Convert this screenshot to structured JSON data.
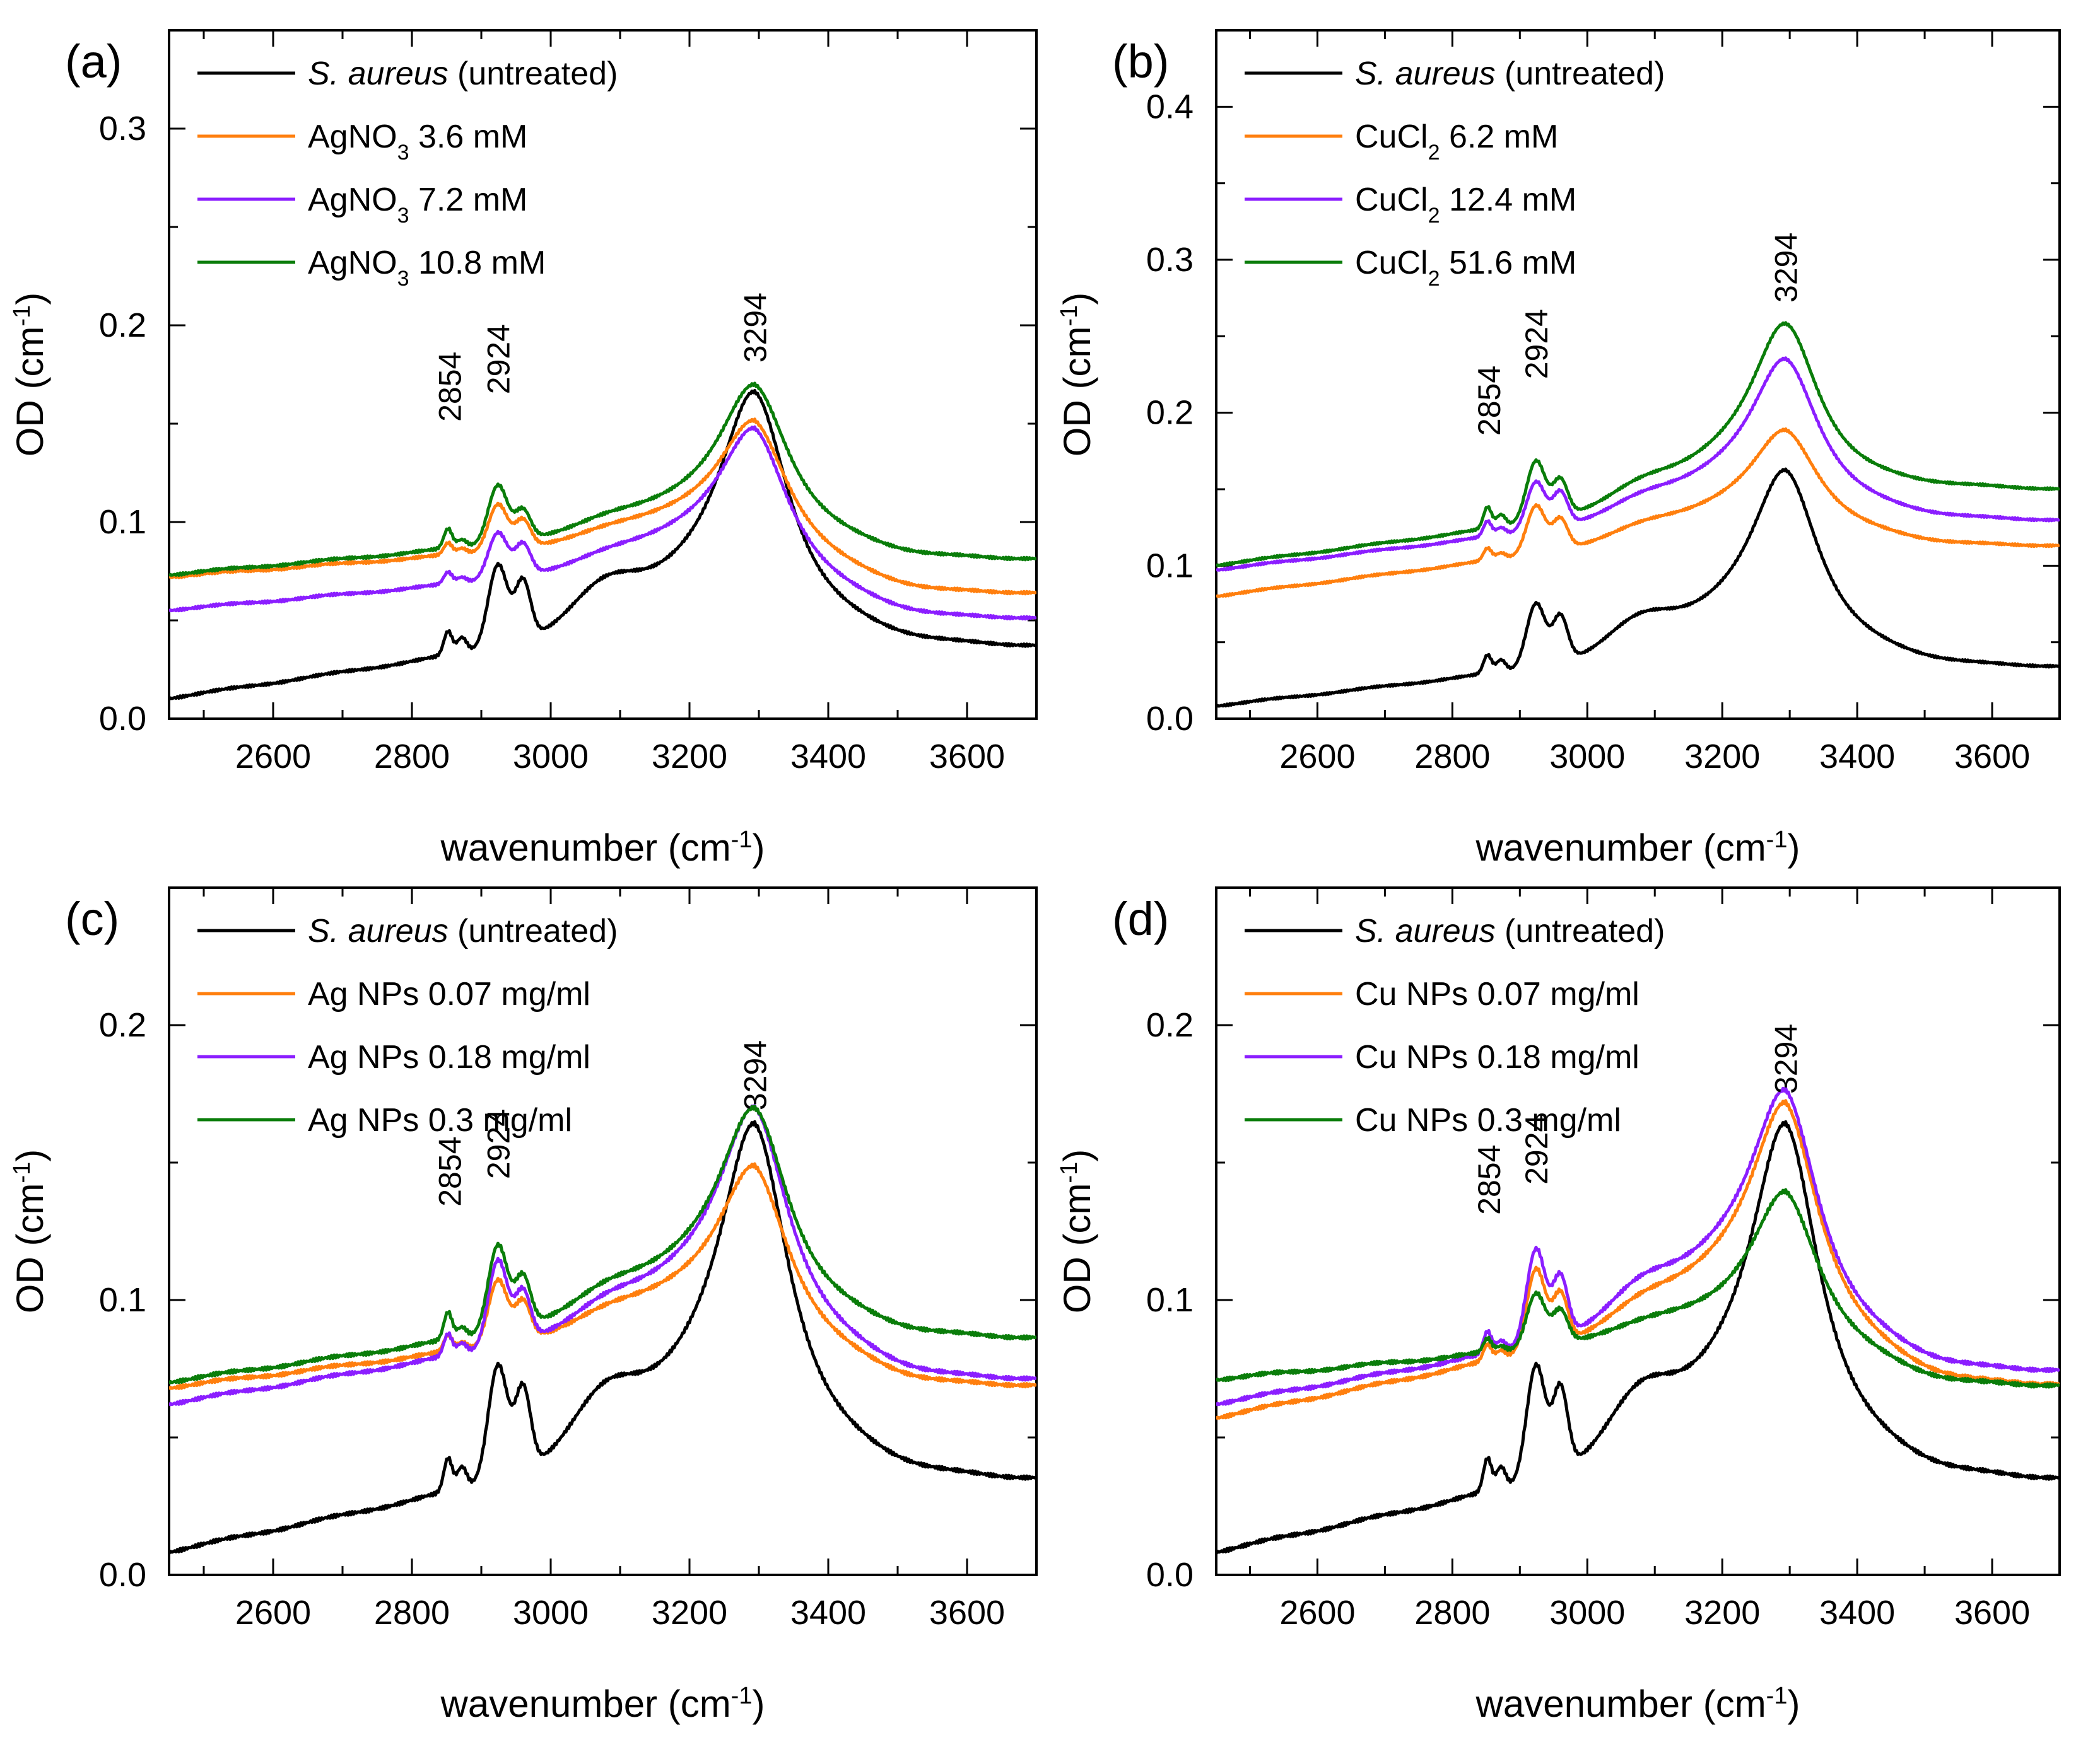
{
  "figure": {
    "color_black": "#000000",
    "color_orange": "#ff7f0e",
    "color_purple": "#8b1eff",
    "color_green": "#0a7d0a"
  },
  "chart_data": [
    {
      "type": "line",
      "panel": "(a)",
      "xlabel": "wavenumber (cm",
      "xlabel_sup": "-1",
      "xlabel_close": ")",
      "ylabel": "OD (cm",
      "ylabel_sup": "-1",
      "ylabel_close": ")",
      "xlim": [
        2450,
        3700
      ],
      "ylim": [
        0,
        0.35
      ],
      "xticks": [
        "2600",
        "2800",
        "3000",
        "3200",
        "3400",
        "3600"
      ],
      "yticks": [
        "0.0",
        "0.1",
        "0.2",
        "0.3"
      ],
      "ytick_values": [
        0.0,
        0.1,
        0.2,
        0.3
      ],
      "peaks": [
        "2854",
        "2924",
        "3294"
      ],
      "peak_x": [
        2854,
        2924,
        3294
      ],
      "peak_y": [
        0.151,
        0.165,
        0.181
      ],
      "legend": [
        {
          "italic": "S. aureus",
          "text": " (untreated)",
          "color": "#000000"
        },
        {
          "pre": "AgNO",
          "sub": "3",
          "post": " 3.6 mM",
          "color": "#ff7f0e"
        },
        {
          "pre": "AgNO",
          "sub": "3",
          "post": " 7.2 mM",
          "color": "#8b1eff"
        },
        {
          "pre": "AgNO",
          "sub": "3",
          "post": " 10.8 mM",
          "color": "#0a7d0a"
        }
      ],
      "series": [
        {
          "name": "S. aureus (untreated)",
          "color": "#000000",
          "base": 0.01,
          "slope": 5e-05,
          "end": 0.035,
          "s2850": 0.012,
          "s2870": 0.008,
          "s2924": 0.042,
          "s2960": 0.03,
          "s3075": 0.02,
          "s3200": 0.014,
          "s3294": 0.108
        },
        {
          "name": "AgNO3 3.6 mM",
          "color": "#ff7f0e",
          "base": 0.072,
          "slope": 2.5e-05,
          "end": 0.063,
          "s2850": 0.006,
          "s2870": 0.003,
          "s2924": 0.024,
          "s2960": 0.014,
          "s3075": 0.005,
          "s3200": 0.008,
          "s3294": 0.055
        },
        {
          "name": "AgNO3 7.2 mM",
          "color": "#8b1eff",
          "base": 0.055,
          "slope": 3e-05,
          "end": 0.05,
          "s2850": 0.006,
          "s2870": 0.003,
          "s2924": 0.024,
          "s2960": 0.016,
          "s3075": 0.006,
          "s3200": 0.01,
          "s3294": 0.063
        },
        {
          "name": "AgNO3 10.8 mM",
          "color": "#0a7d0a",
          "base": 0.073,
          "slope": 3e-05,
          "end": 0.08,
          "s2850": 0.01,
          "s2870": 0.004,
          "s2924": 0.03,
          "s2960": 0.015,
          "s3075": 0.006,
          "s3200": 0.008,
          "s3294": 0.068
        }
      ]
    },
    {
      "type": "line",
      "panel": "(b)",
      "xlabel": "wavenumber (cm",
      "xlabel_sup": "-1",
      "xlabel_close": ")",
      "ylabel": "OD (cm",
      "ylabel_sup": "-1",
      "ylabel_close": ")",
      "xlim": [
        2450,
        3700
      ],
      "ylim": [
        0,
        0.45
      ],
      "xticks": [
        "2600",
        "2800",
        "3000",
        "3200",
        "3400",
        "3600"
      ],
      "yticks": [
        "0.0",
        "0.1",
        "0.2",
        "0.3",
        "0.4"
      ],
      "ytick_values": [
        0.0,
        0.1,
        0.2,
        0.3,
        0.4
      ],
      "peaks": [
        "2854",
        "2924",
        "3294"
      ],
      "peak_x": [
        2854,
        2924,
        3294
      ],
      "peak_y": [
        0.185,
        0.222,
        0.272
      ],
      "legend": [
        {
          "italic": "S. aureus",
          "text": " (untreated)",
          "color": "#000000"
        },
        {
          "pre": "CuCl",
          "sub": "2",
          "post": " 6.2 mM",
          "color": "#ff7f0e"
        },
        {
          "pre": "CuCl",
          "sub": "2",
          "post": " 12.4 mM",
          "color": "#8b1eff"
        },
        {
          "pre": "CuCl",
          "sub": "2",
          "post": " 51.6 mM",
          "color": "#0a7d0a"
        }
      ],
      "series": [
        {
          "name": "S. aureus (untreated)",
          "color": "#000000",
          "base": 0.008,
          "slope": 4.8e-05,
          "end": 0.032,
          "s2850": 0.012,
          "s2870": 0.008,
          "s2924": 0.042,
          "s2960": 0.03,
          "s3075": 0.02,
          "s3200": 0.014,
          "s3294": 0.108
        },
        {
          "name": "CuCl2 6.2 mM",
          "color": "#ff7f0e",
          "base": 0.08,
          "slope": 5.5e-05,
          "end": 0.112,
          "s2850": 0.008,
          "s2870": 0.004,
          "s2924": 0.032,
          "s2960": 0.02,
          "s3075": 0.008,
          "s3200": 0.01,
          "s3294": 0.058
        },
        {
          "name": "CuCl2 12.4 mM",
          "color": "#8b1eff",
          "base": 0.097,
          "slope": 5e-05,
          "end": 0.128,
          "s2850": 0.01,
          "s2870": 0.005,
          "s2924": 0.032,
          "s2960": 0.022,
          "s3075": 0.01,
          "s3200": 0.014,
          "s3294": 0.09
        },
        {
          "name": "CuCl2 51.6 mM",
          "color": "#0a7d0a",
          "base": 0.1,
          "slope": 5.5e-05,
          "end": 0.148,
          "s2850": 0.014,
          "s2870": 0.008,
          "s2924": 0.04,
          "s2960": 0.024,
          "s3075": 0.012,
          "s3200": 0.016,
          "s3294": 0.105
        }
      ]
    },
    {
      "type": "line",
      "panel": "(c)",
      "xlabel": "wavenumber (cm",
      "xlabel_sup": "-1",
      "xlabel_close": ")",
      "ylabel": "OD (cm",
      "ylabel_sup": "-1",
      "ylabel_close": ")",
      "xlim": [
        2450,
        3700
      ],
      "ylim": [
        0,
        0.25
      ],
      "xticks": [
        "2600",
        "2800",
        "3000",
        "3200",
        "3400",
        "3600"
      ],
      "yticks": [
        "0.0",
        "0.1",
        "0.2"
      ],
      "ytick_values": [
        0.0,
        0.1,
        0.2
      ],
      "peaks": [
        "2854",
        "2924",
        "3294"
      ],
      "peak_x": [
        2854,
        2924,
        3294
      ],
      "peak_y": [
        0.134,
        0.144,
        0.169
      ],
      "legend": [
        {
          "italic": "S. aureus",
          "text": " (untreated)",
          "color": "#000000"
        },
        {
          "pre": "Ag NPs 0.07 mg/ml",
          "color": "#ff7f0e"
        },
        {
          "pre": "Ag NPs 0.18 mg/ml",
          "color": "#8b1eff"
        },
        {
          "pre": "Ag NPs 0.3 mg/ml",
          "color": "#0a7d0a"
        }
      ],
      "series": [
        {
          "name": "S. aureus (untreated)",
          "color": "#000000",
          "base": 0.008,
          "slope": 5e-05,
          "end": 0.033,
          "s2850": 0.012,
          "s2870": 0.008,
          "s2924": 0.042,
          "s2960": 0.03,
          "s3075": 0.02,
          "s3200": 0.014,
          "s3294": 0.108
        },
        {
          "name": "Ag NPs 0.07 mg/ml",
          "color": "#ff7f0e",
          "base": 0.068,
          "slope": 3e-05,
          "end": 0.068,
          "s2850": 0.006,
          "s2870": 0.003,
          "s2924": 0.024,
          "s2960": 0.014,
          "s3075": 0.006,
          "s3200": 0.008,
          "s3294": 0.052
        },
        {
          "name": "Ag NPs 0.18 mg/ml",
          "color": "#8b1eff",
          "base": 0.062,
          "slope": 4e-05,
          "end": 0.07,
          "s2850": 0.008,
          "s2870": 0.004,
          "s2924": 0.032,
          "s2960": 0.018,
          "s3075": 0.008,
          "s3200": 0.01,
          "s3294": 0.07
        },
        {
          "name": "Ag NPs 0.3 mg/ml",
          "color": "#0a7d0a",
          "base": 0.07,
          "slope": 3.5e-05,
          "end": 0.085,
          "s2850": 0.01,
          "s2870": 0.004,
          "s2924": 0.032,
          "s2960": 0.018,
          "s3075": 0.008,
          "s3200": 0.01,
          "s3294": 0.066
        }
      ]
    },
    {
      "type": "line",
      "panel": "(d)",
      "xlabel": "wavenumber (cm",
      "xlabel_sup": "-1",
      "xlabel_close": ")",
      "ylabel": "OD (cm",
      "ylabel_sup": "-1",
      "ylabel_close": ")",
      "xlim": [
        2450,
        3700
      ],
      "ylim": [
        0,
        0.25
      ],
      "xticks": [
        "2600",
        "2800",
        "3000",
        "3200",
        "3400",
        "3600"
      ],
      "yticks": [
        "0.0",
        "0.1",
        "0.2"
      ],
      "ytick_values": [
        0.0,
        0.1,
        0.2
      ],
      "peaks": [
        "2854",
        "2924",
        "3294"
      ],
      "peak_x": [
        2854,
        2924,
        3294
      ],
      "peak_y": [
        0.131,
        0.142,
        0.175
      ],
      "legend": [
        {
          "italic": "S. aureus",
          "text": " (untreated)",
          "color": "#000000"
        },
        {
          "pre": "Cu NPs 0.07 mg/ml",
          "color": "#ff7f0e"
        },
        {
          "pre": "Cu NPs 0.18 mg/ml",
          "color": "#8b1eff"
        },
        {
          "pre": "Cu NPs 0.3 mg/ml",
          "color": "#0a7d0a"
        }
      ],
      "series": [
        {
          "name": "S. aureus (untreated)",
          "color": "#000000",
          "base": 0.008,
          "slope": 5e-05,
          "end": 0.033,
          "s2850": 0.012,
          "s2870": 0.008,
          "s2924": 0.042,
          "s2960": 0.03,
          "s3075": 0.02,
          "s3200": 0.014,
          "s3294": 0.108
        },
        {
          "name": "Cu NPs 0.07 mg/ml",
          "color": "#ff7f0e",
          "base": 0.057,
          "slope": 4.8e-05,
          "end": 0.068,
          "s2850": 0.006,
          "s2870": 0.003,
          "s2924": 0.03,
          "s2960": 0.018,
          "s3075": 0.008,
          "s3200": 0.01,
          "s3294": 0.07
        },
        {
          "name": "Cu NPs 0.18 mg/ml",
          "color": "#8b1eff",
          "base": 0.062,
          "slope": 4.2e-05,
          "end": 0.073,
          "s2850": 0.008,
          "s2870": 0.004,
          "s2924": 0.035,
          "s2960": 0.022,
          "s3075": 0.012,
          "s3200": 0.014,
          "s3294": 0.073
        },
        {
          "name": "Cu NPs 0.3 mg/ml",
          "color": "#0a7d0a",
          "base": 0.071,
          "slope": 2.2e-05,
          "end": 0.068,
          "s2850": 0.005,
          "s2870": 0.002,
          "s2924": 0.02,
          "s2960": 0.012,
          "s3075": 0.004,
          "s3200": 0.004,
          "s3294": 0.048
        }
      ]
    }
  ]
}
